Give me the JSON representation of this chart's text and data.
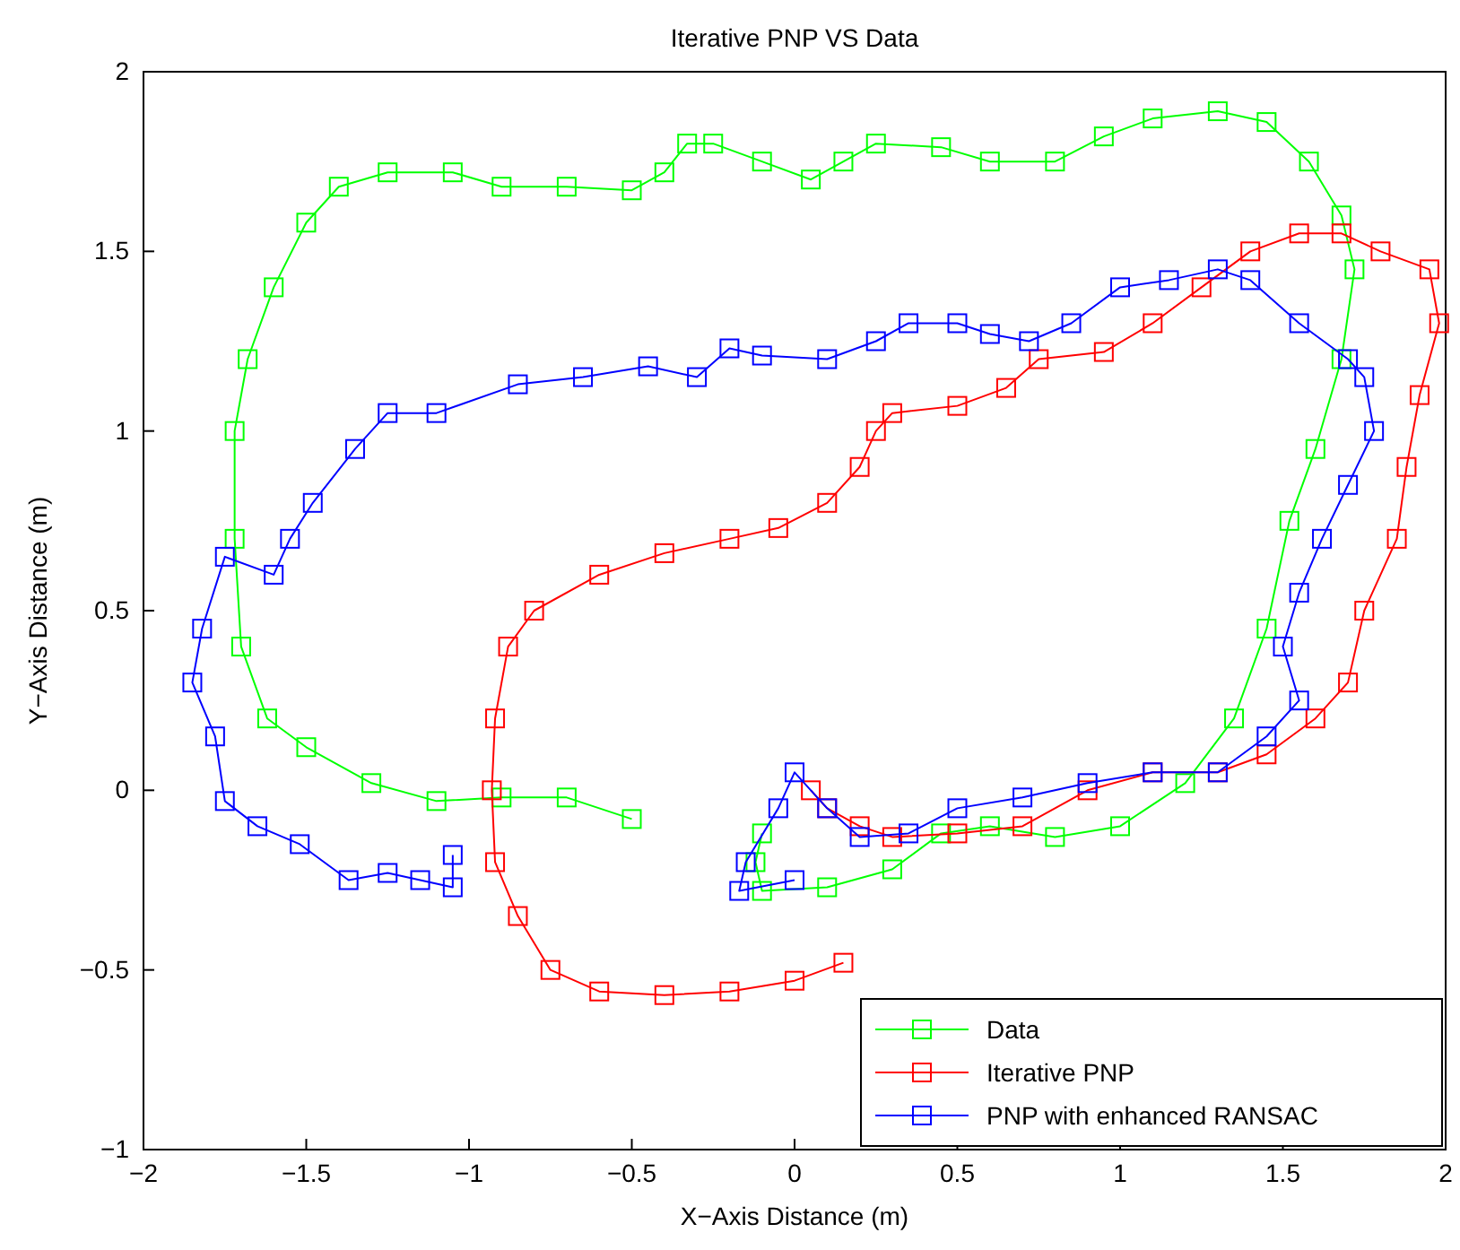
{
  "chart_data": {
    "type": "line",
    "title": "Iterative PNP VS Data",
    "xlabel": "X−Axis Distance (m)",
    "ylabel": "Y−Axis Distance (m)",
    "xlim": [
      -2,
      2
    ],
    "xticks": [
      {
        "value": -2,
        "label": "−2"
      },
      {
        "value": -1.5,
        "label": "−1.5"
      },
      {
        "value": -1,
        "label": "−1"
      },
      {
        "value": -0.5,
        "label": "−0.5"
      },
      0,
      0.5,
      1,
      1.5,
      2
    ],
    "ylim": [
      -1,
      2
    ],
    "yticks": [
      {
        "value": -1,
        "label": "−1"
      },
      {
        "value": -0.5,
        "label": "−0.5"
      },
      0,
      0.5,
      1,
      1.5,
      2
    ],
    "grid": false,
    "legend": "bottom right",
    "marker": "square",
    "line_style": "solid",
    "series": [
      {
        "name": "Data",
        "color": "#00ff00",
        "x": [
          -0.5,
          -0.7,
          -0.9,
          -1.1,
          -1.3,
          -1.5,
          -1.62,
          -1.7,
          -1.72,
          -1.72,
          -1.68,
          -1.6,
          -1.5,
          -1.4,
          -1.25,
          -1.05,
          -0.9,
          -0.7,
          -0.5,
          -0.4,
          -0.33,
          -0.25,
          -0.1,
          0.05,
          0.15,
          0.25,
          0.45,
          0.6,
          0.8,
          0.95,
          1.1,
          1.3,
          1.45,
          1.58,
          1.68,
          1.72,
          1.68,
          1.6,
          1.52,
          1.45,
          1.35,
          1.2,
          1.0,
          0.8,
          0.6,
          0.45,
          0.3,
          0.1,
          -0.1,
          -0.12,
          -0.1
        ],
        "values": [
          -0.08,
          -0.02,
          -0.02,
          -0.03,
          0.02,
          0.12,
          0.2,
          0.4,
          0.7,
          1.0,
          1.2,
          1.4,
          1.58,
          1.68,
          1.72,
          1.72,
          1.68,
          1.68,
          1.67,
          1.72,
          1.8,
          1.8,
          1.75,
          1.7,
          1.75,
          1.8,
          1.79,
          1.75,
          1.75,
          1.82,
          1.87,
          1.89,
          1.86,
          1.75,
          1.6,
          1.45,
          1.2,
          0.95,
          0.75,
          0.45,
          0.2,
          0.02,
          -0.1,
          -0.13,
          -0.1,
          -0.12,
          -0.22,
          -0.27,
          -0.28,
          -0.2,
          -0.12
        ]
      },
      {
        "name": "Iterative PNP",
        "color": "#ff0000",
        "x": [
          0.15,
          0,
          -0.2,
          -0.4,
          -0.6,
          -0.75,
          -0.85,
          -0.92,
          -0.93,
          -0.92,
          -0.88,
          -0.8,
          -0.6,
          -0.4,
          -0.2,
          -0.05,
          0.1,
          0.2,
          0.25,
          0.3,
          0.5,
          0.65,
          0.75,
          0.95,
          1.1,
          1.25,
          1.4,
          1.55,
          1.68,
          1.8,
          1.95,
          1.98,
          1.92,
          1.88,
          1.85,
          1.75,
          1.7,
          1.6,
          1.45,
          1.3,
          1.1,
          0.9,
          0.7,
          0.5,
          0.3,
          0.2,
          0.1,
          0.05
        ],
        "values": [
          -0.48,
          -0.53,
          -0.56,
          -0.57,
          -0.56,
          -0.5,
          -0.35,
          -0.2,
          0,
          0.2,
          0.4,
          0.5,
          0.6,
          0.66,
          0.7,
          0.73,
          0.8,
          0.9,
          1.0,
          1.05,
          1.07,
          1.12,
          1.2,
          1.22,
          1.3,
          1.4,
          1.5,
          1.55,
          1.55,
          1.5,
          1.45,
          1.3,
          1.1,
          0.9,
          0.7,
          0.5,
          0.3,
          0.2,
          0.1,
          0.05,
          0.05,
          0,
          -0.1,
          -0.12,
          -0.13,
          -0.1,
          -0.05,
          0
        ]
      },
      {
        "name": "PNP with enhanced RANSAC",
        "color": "#0000ff",
        "x": [
          -1.05,
          -1.05,
          -1.15,
          -1.25,
          -1.37,
          -1.52,
          -1.65,
          -1.75,
          -1.78,
          -1.85,
          -1.82,
          -1.75,
          -1.6,
          -1.55,
          -1.48,
          -1.35,
          -1.25,
          -1.1,
          -0.85,
          -0.65,
          -0.45,
          -0.3,
          -0.2,
          -0.1,
          0.1,
          0.25,
          0.35,
          0.5,
          0.6,
          0.72,
          0.85,
          1.0,
          1.15,
          1.3,
          1.4,
          1.55,
          1.7,
          1.75,
          1.78,
          1.7,
          1.62,
          1.55,
          1.5,
          1.55,
          1.45,
          1.3,
          1.1,
          0.9,
          0.7,
          0.5,
          0.35,
          0.2,
          0.1,
          0,
          -0.05,
          -0.15,
          -0.17,
          0
        ],
        "values": [
          -0.18,
          -0.27,
          -0.25,
          -0.23,
          -0.25,
          -0.15,
          -0.1,
          -0.03,
          0.15,
          0.3,
          0.45,
          0.65,
          0.6,
          0.7,
          0.8,
          0.95,
          1.05,
          1.05,
          1.13,
          1.15,
          1.18,
          1.15,
          1.23,
          1.21,
          1.2,
          1.25,
          1.3,
          1.3,
          1.27,
          1.25,
          1.3,
          1.4,
          1.42,
          1.45,
          1.42,
          1.3,
          1.2,
          1.15,
          1.0,
          0.85,
          0.7,
          0.55,
          0.4,
          0.25,
          0.15,
          0.05,
          0.05,
          0.02,
          -0.02,
          -0.05,
          -0.12,
          -0.13,
          -0.05,
          0.05,
          -0.05,
          -0.2,
          -0.28,
          -0.25
        ]
      }
    ]
  }
}
